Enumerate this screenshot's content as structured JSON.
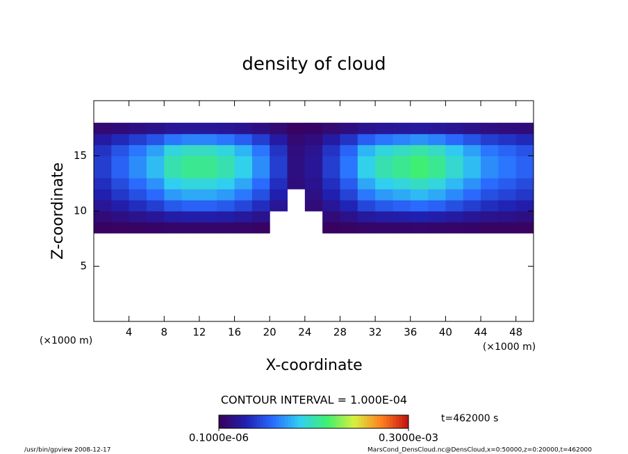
{
  "chart_data": {
    "type": "contour",
    "title": "density of cloud",
    "x_label": "X-coordinate",
    "y_label": "Z-coordinate",
    "x_unit": "(×1000 m)",
    "y_unit": "(×1000 m)",
    "xlim": [
      0,
      50
    ],
    "ylim": [
      0,
      20
    ],
    "xticks": [
      4,
      8,
      12,
      16,
      20,
      24,
      28,
      32,
      36,
      40,
      44,
      48
    ],
    "yticks": [
      5,
      10,
      15
    ],
    "x": [
      1,
      3,
      5,
      7,
      9,
      11,
      13,
      15,
      17,
      19,
      21,
      23,
      25,
      27,
      29,
      31,
      33,
      35,
      37,
      39,
      41,
      43,
      45,
      47,
      49
    ],
    "z": [
      8.5,
      9.5,
      10.5,
      11.5,
      12.5,
      13.5,
      14.5,
      15.5,
      16.5,
      17.5
    ],
    "values": [
      [
        3e-06,
        4e-06,
        5e-06,
        6e-06,
        8e-06,
        8e-06,
        8e-06,
        8e-06,
        7e-06,
        5e-06,
        null,
        null,
        null,
        3e-06,
        5e-06,
        7e-06,
        8e-06,
        8e-06,
        9e-06,
        8e-06,
        7e-06,
        6e-06,
        5e-06,
        5e-06,
        4e-06
      ],
      [
        1.5e-05,
        2e-05,
        2.5e-05,
        3e-05,
        3.8e-05,
        4e-05,
        4e-05,
        3.8e-05,
        3.3e-05,
        2.5e-05,
        null,
        null,
        null,
        1.5e-05,
        2.3e-05,
        3.3e-05,
        3.8e-05,
        4e-05,
        4.3e-05,
        4e-05,
        3.5e-05,
        3e-05,
        2.5e-05,
        2.3e-05,
        2e-05
      ],
      [
        3e-05,
        4e-05,
        5e-05,
        6e-05,
        7.5e-05,
        8e-05,
        8e-05,
        7.5e-05,
        6.5e-05,
        5e-05,
        3e-05,
        null,
        1.5e-05,
        3e-05,
        4.5e-05,
        6.5e-05,
        7.5e-05,
        8e-05,
        8.5e-05,
        8e-05,
        7e-05,
        6e-05,
        5e-05,
        4.5e-05,
        4e-05
      ],
      [
        4.2e-05,
        5.6e-05,
        7e-05,
        8.4e-05,
        0.000105,
        0.000112,
        0.000112,
        0.000105,
        9.1e-05,
        7e-05,
        4.2e-05,
        null,
        2.1e-05,
        4.2e-05,
        6.3e-05,
        9.1e-05,
        0.000105,
        0.000112,
        0.000119,
        0.000112,
        9.8e-05,
        8.4e-05,
        7e-05,
        6.3e-05,
        5.6e-05
      ],
      [
        5.1e-05,
        6.8e-05,
        8.5e-05,
        0.000102,
        0.000128,
        0.000136,
        0.000136,
        0.000128,
        0.000111,
        8.5e-05,
        5.1e-05,
        1.7e-05,
        2.6e-05,
        5.1e-05,
        7.7e-05,
        0.000111,
        0.000128,
        0.000136,
        0.000145,
        0.000136,
        0.000119,
        0.000102,
        8.5e-05,
        7.7e-05,
        6.8e-05
      ],
      [
        6e-05,
        8e-05,
        0.0001,
        0.00012,
        0.00015,
        0.00016,
        0.00016,
        0.00015,
        0.00013,
        0.0001,
        6e-05,
        2e-05,
        3e-05,
        6e-05,
        9e-05,
        0.00013,
        0.00015,
        0.00016,
        0.00017,
        0.00016,
        0.00014,
        0.00012,
        0.0001,
        9e-05,
        8e-05
      ],
      [
        6e-05,
        8e-05,
        0.0001,
        0.00012,
        0.00015,
        0.00016,
        0.00016,
        0.00015,
        0.00013,
        0.0001,
        6e-05,
        2e-05,
        3e-05,
        6e-05,
        9e-05,
        0.00013,
        0.00015,
        0.00016,
        0.00017,
        0.00016,
        0.00014,
        0.00012,
        0.0001,
        9e-05,
        8e-05
      ],
      [
        5.4e-05,
        7.2e-05,
        9e-05,
        0.000108,
        0.000135,
        0.000144,
        0.000144,
        0.000135,
        0.000117,
        9e-05,
        5.4e-05,
        1.8e-05,
        2.7e-05,
        5.4e-05,
        8.1e-05,
        0.000117,
        0.000135,
        0.000144,
        0.000153,
        0.000144,
        0.000126,
        0.000108,
        9e-05,
        8.1e-05,
        7.2e-05
      ],
      [
        3.6e-05,
        4.8e-05,
        6e-05,
        7.2e-05,
        9e-05,
        9.6e-05,
        9.6e-05,
        9e-05,
        7.8e-05,
        6e-05,
        3.6e-05,
        1.2e-05,
        1.8e-05,
        3.6e-05,
        5.4e-05,
        7.8e-05,
        9e-05,
        9.6e-05,
        0.000102,
        9.6e-05,
        8.4e-05,
        7.2e-05,
        6e-05,
        5.4e-05,
        4.8e-05
      ],
      [
        1.2e-05,
        1.6e-05,
        2e-05,
        2.4e-05,
        3e-05,
        3.2e-05,
        3.2e-05,
        3e-05,
        2.6e-05,
        2e-05,
        1.2e-05,
        4e-06,
        6e-06,
        1.2e-05,
        1.8e-05,
        2.6e-05,
        3e-05,
        3.2e-05,
        3.4e-05,
        3.2e-05,
        2.8e-05,
        2.4e-05,
        2e-05,
        1.8e-05,
        1.6e-05
      ]
    ],
    "colormap": [
      "#3a005a",
      "#2020b0",
      "#2a6cff",
      "#30d0f0",
      "#40f070",
      "#d8f040",
      "#ff8020",
      "#c01010"
    ],
    "colorbar_lim": [
      1e-07,
      0.0003
    ],
    "colorbar_ticks": [
      {
        "value": 1e-07,
        "label": "0.1000e-06"
      },
      {
        "value": 0.0003,
        "label": "0.3000e-03"
      }
    ],
    "contour_interval": "CONTOUR INTERVAL = 1.000E-04",
    "time_label": "t=462000 s",
    "footer_left": "/usr/bin/gpview   2008-12-17",
    "footer_right": "MarsCond_DensCloud.nc@DensCloud,x=0:50000,z=0:20000,t=462000"
  }
}
